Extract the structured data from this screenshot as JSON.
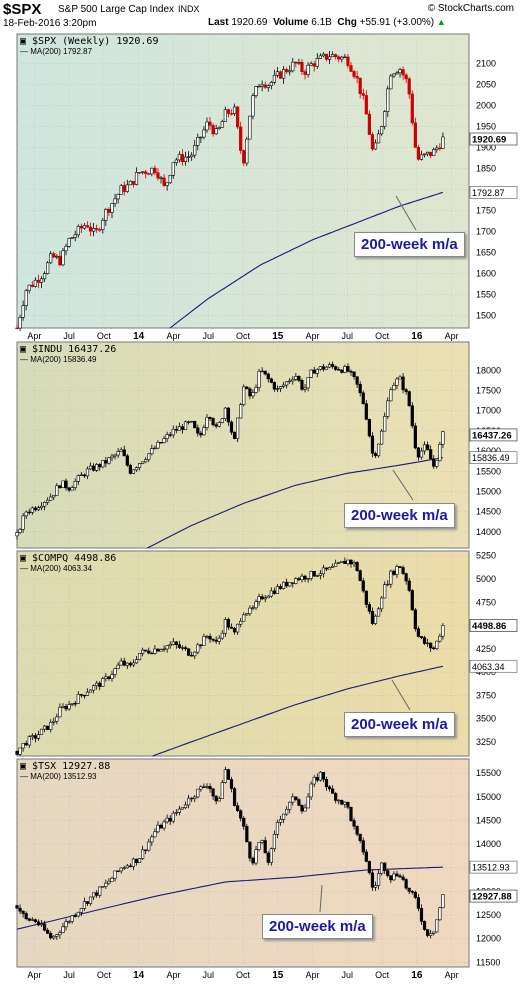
{
  "header": {
    "symbol": "$SPX",
    "name": "S&P 500 Large Cap Index",
    "exchange": "INDX",
    "brand": "© StockCharts.com",
    "date": "18-Feb-2016 3:20pm",
    "last_label": "Last",
    "last_value": "1920.69",
    "volume_label": "Volume",
    "volume_value": "6.1B",
    "chg_label": "Chg",
    "chg_value": "+55.91 (+3.00%)",
    "chg_arrow": "▲"
  },
  "x_axis": {
    "labels": [
      "Apr",
      "Jul",
      "Oct",
      "14",
      "Apr",
      "Jul",
      "Oct",
      "15",
      "Apr",
      "Jul",
      "Oct",
      "16",
      "Apr"
    ],
    "bold_labels": [
      "14",
      "15",
      "16"
    ]
  },
  "callout_text": "200-week m/a",
  "colors": {
    "ma_line": "#1a1a7a",
    "up_bar": "#000000",
    "down_bar": "#cc0000",
    "callout_text": "#1a1aa6"
  },
  "chart_data": [
    {
      "type": "candlestick",
      "title": "$SPX (Weekly) 1920.69",
      "ma_label": "MA(200) 1792.87",
      "last_value_label": "1920.69",
      "ma_value_label": "1792.87",
      "ylim": [
        1470,
        2170
      ],
      "yticks": [
        1500,
        1550,
        1600,
        1650,
        1700,
        1750,
        1800,
        1850,
        1900,
        1950,
        2000,
        2050,
        2100
      ],
      "background_gradient": [
        "#cfe6de",
        "#dfe6cf"
      ],
      "price_path": [
        [
          0,
          1470
        ],
        [
          0.5,
          1560
        ],
        [
          1.5,
          1600
        ],
        [
          2,
          1640
        ],
        [
          2.5,
          1630
        ],
        [
          3,
          1680
        ],
        [
          4,
          1720
        ],
        [
          4.5,
          1690
        ],
        [
          5,
          1740
        ],
        [
          6,
          1800
        ],
        [
          6.5,
          1810
        ],
        [
          7,
          1840
        ],
        [
          8,
          1850
        ],
        [
          8.5,
          1800
        ],
        [
          9,
          1870
        ],
        [
          10,
          1880
        ],
        [
          11,
          1960
        ],
        [
          11.5,
          1930
        ],
        [
          12,
          1980
        ],
        [
          12.5,
          1990
        ],
        [
          13,
          1860
        ],
        [
          13.5,
          2010
        ],
        [
          14,
          2060
        ],
        [
          14.5,
          2050
        ],
        [
          15,
          2070
        ],
        [
          16,
          2100
        ],
        [
          16.5,
          2080
        ],
        [
          17,
          2100
        ],
        [
          18,
          2120
        ],
        [
          19,
          2110
        ],
        [
          19.5,
          2070
        ],
        [
          20,
          2000
        ],
        [
          20.5,
          1880
        ],
        [
          21,
          1960
        ],
        [
          21.5,
          2080
        ],
        [
          22,
          2090
        ],
        [
          22.5,
          2050
        ],
        [
          23,
          1870
        ],
        [
          23.5,
          1880
        ],
        [
          24,
          1890
        ],
        [
          24.5,
          1920
        ]
      ],
      "ma_path": [
        [
          8.8,
          1470
        ],
        [
          11,
          1540
        ],
        [
          14,
          1620
        ],
        [
          17,
          1680
        ],
        [
          19.5,
          1720
        ],
        [
          22,
          1760
        ],
        [
          24.5,
          1793
        ]
      ],
      "up_bar_color": "#000000",
      "down_bar_color": "#cc0000"
    },
    {
      "type": "candlestick",
      "title": "$INDU 16437.26",
      "ma_label": "MA(200) 15836.49",
      "last_value_label": "16437.26",
      "ma_value_label": "15836.49",
      "ylim": [
        13600,
        18700
      ],
      "yticks": [
        14000,
        14500,
        15000,
        15500,
        16000,
        16500,
        17000,
        17500,
        18000
      ],
      "background_gradient": [
        "#d6dcb8",
        "#ebe0b4"
      ],
      "price_path": [
        [
          0,
          13900
        ],
        [
          0.5,
          14500
        ],
        [
          1,
          14600
        ],
        [
          2,
          14900
        ],
        [
          2.5,
          15200
        ],
        [
          3,
          15100
        ],
        [
          4,
          15500
        ],
        [
          5,
          15700
        ],
        [
          6,
          16000
        ],
        [
          6.5,
          15500
        ],
        [
          7,
          15700
        ],
        [
          8,
          16100
        ],
        [
          9,
          16500
        ],
        [
          10,
          16700
        ],
        [
          10.5,
          16300
        ],
        [
          11,
          17000
        ],
        [
          11.5,
          16500
        ],
        [
          12,
          17100
        ],
        [
          12.5,
          16200
        ],
        [
          13,
          17600
        ],
        [
          13.5,
          17300
        ],
        [
          14,
          18000
        ],
        [
          15,
          17500
        ],
        [
          16,
          17900
        ],
        [
          16.5,
          17500
        ],
        [
          17,
          18000
        ],
        [
          18,
          18100
        ],
        [
          19,
          18000
        ],
        [
          19.5,
          17700
        ],
        [
          20,
          17100
        ],
        [
          20.5,
          15800
        ],
        [
          21,
          16500
        ],
        [
          21.5,
          17600
        ],
        [
          22,
          17800
        ],
        [
          22.5,
          17300
        ],
        [
          23,
          15900
        ],
        [
          23.5,
          16100
        ],
        [
          24,
          15600
        ],
        [
          24.5,
          16400
        ]
      ],
      "ma_path": [
        [
          7.5,
          13600
        ],
        [
          10,
          14150
        ],
        [
          13,
          14700
        ],
        [
          16,
          15150
        ],
        [
          19,
          15450
        ],
        [
          22,
          15650
        ],
        [
          24.5,
          15836
        ]
      ],
      "up_bar_color": "#000000",
      "down_bar_color": "#000000"
    },
    {
      "type": "candlestick",
      "title": "$COMPQ 4498.86",
      "ma_label": "MA(200) 4063.34",
      "last_value_label": "4498.86",
      "ma_value_label": "4063.34",
      "ylim": [
        3100,
        5300
      ],
      "yticks": [
        3250,
        3500,
        3750,
        4000,
        4250,
        4500,
        4750,
        5000,
        5250
      ],
      "background_gradient": [
        "#dcdcb0",
        "#ecdcaa"
      ],
      "price_path": [
        [
          0,
          3150
        ],
        [
          0.5,
          3250
        ],
        [
          1,
          3300
        ],
        [
          2,
          3450
        ],
        [
          2.5,
          3600
        ],
        [
          3,
          3650
        ],
        [
          4,
          3800
        ],
        [
          5,
          3900
        ],
        [
          6,
          4100
        ],
        [
          6.5,
          4050
        ],
        [
          7,
          4200
        ],
        [
          8,
          4250
        ],
        [
          9,
          4300
        ],
        [
          10,
          4200
        ],
        [
          11,
          4400
        ],
        [
          11.5,
          4300
        ],
        [
          12,
          4550
        ],
        [
          12.5,
          4400
        ],
        [
          13,
          4650
        ],
        [
          13.5,
          4650
        ],
        [
          14,
          4800
        ],
        [
          15,
          4900
        ],
        [
          16,
          5000
        ],
        [
          17,
          5050
        ],
        [
          18,
          5100
        ],
        [
          19,
          5200
        ],
        [
          19.5,
          5150
        ],
        [
          20,
          4800
        ],
        [
          20.5,
          4500
        ],
        [
          21,
          4850
        ],
        [
          21.5,
          5050
        ],
        [
          22,
          5150
        ],
        [
          22.5,
          4950
        ],
        [
          23,
          4400
        ],
        [
          23.5,
          4300
        ],
        [
          24,
          4250
        ],
        [
          24.5,
          4500
        ]
      ],
      "ma_path": [
        [
          7.8,
          3100
        ],
        [
          10,
          3250
        ],
        [
          13,
          3450
        ],
        [
          16,
          3650
        ],
        [
          19,
          3820
        ],
        [
          22,
          3960
        ],
        [
          24.5,
          4063
        ]
      ],
      "up_bar_color": "#000000",
      "down_bar_color": "#000000"
    },
    {
      "type": "candlestick",
      "title": "$TSX 12927.88",
      "ma_label": "MA(200) 13512.93",
      "last_value_label": "12927.88",
      "ma_value_label": "13512.93",
      "ylim": [
        11400,
        15800
      ],
      "yticks": [
        11500,
        12000,
        12500,
        13000,
        13500,
        14000,
        14500,
        15000,
        15500
      ],
      "background_gradient": [
        "#e6d8c0",
        "#f0d8c0"
      ],
      "price_path": [
        [
          0,
          12700
        ],
        [
          0.5,
          12400
        ],
        [
          1,
          12400
        ],
        [
          2,
          12000
        ],
        [
          2.5,
          12200
        ],
        [
          3,
          12400
        ],
        [
          4,
          12800
        ],
        [
          5,
          13100
        ],
        [
          6,
          13500
        ],
        [
          7,
          13700
        ],
        [
          8,
          14300
        ],
        [
          9,
          14600
        ],
        [
          10,
          15000
        ],
        [
          11,
          15300
        ],
        [
          11.5,
          14800
        ],
        [
          12,
          15600
        ],
        [
          12.5,
          14900
        ],
        [
          13,
          14400
        ],
        [
          13.5,
          13600
        ],
        [
          14,
          14100
        ],
        [
          14.5,
          13600
        ],
        [
          15,
          14500
        ],
        [
          16,
          15000
        ],
        [
          16.5,
          14700
        ],
        [
          17,
          15300
        ],
        [
          17.5,
          15500
        ],
        [
          18,
          15100
        ],
        [
          19,
          14800
        ],
        [
          19.5,
          14200
        ],
        [
          20,
          13800
        ],
        [
          20.5,
          13000
        ],
        [
          21,
          13600
        ],
        [
          21.5,
          13300
        ],
        [
          22,
          13400
        ],
        [
          22.5,
          13000
        ],
        [
          23,
          12800
        ],
        [
          23.5,
          12100
        ],
        [
          24,
          12200
        ],
        [
          24.5,
          12900
        ]
      ],
      "ma_path": [
        [
          0,
          12200
        ],
        [
          4,
          12550
        ],
        [
          8,
          12900
        ],
        [
          12,
          13200
        ],
        [
          16,
          13300
        ],
        [
          20,
          13450
        ],
        [
          24.5,
          13513
        ]
      ],
      "up_bar_color": "#000000",
      "down_bar_color": "#000000"
    }
  ]
}
